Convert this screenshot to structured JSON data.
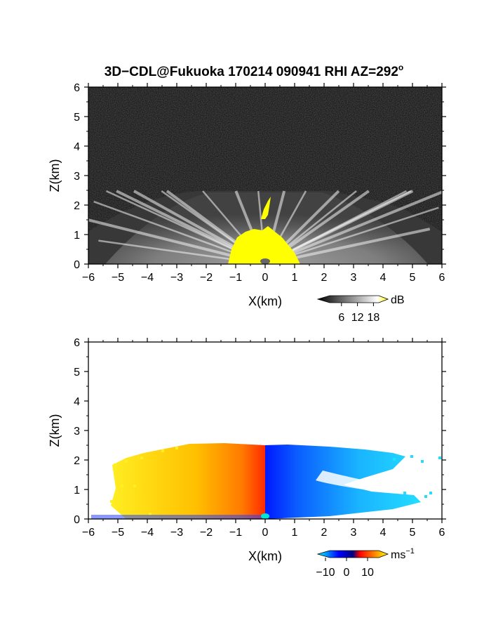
{
  "title": "3D−CDL@Fukuoka 170214 090941 RHI AZ=292",
  "title_superscript": "o",
  "chart_data": [
    {
      "type": "heatmap",
      "panel": "top",
      "variable": "backscatter",
      "xlabel": "X(km)",
      "ylabel": "Z(km)",
      "xlim": [
        -6,
        6
      ],
      "ylim": [
        0,
        6
      ],
      "xticks": [
        -6,
        -5,
        -4,
        -3,
        -2,
        -1,
        0,
        1,
        2,
        3,
        4,
        5,
        6
      ],
      "yticks": [
        0,
        1,
        2,
        3,
        4,
        5,
        6
      ],
      "xtick_labels": [
        "−6",
        "−5",
        "−4",
        "−3",
        "−2",
        "−1",
        "0",
        "1",
        "2",
        "3",
        "4",
        "5",
        "6"
      ],
      "ytick_labels": [
        "0",
        "1",
        "2",
        "3",
        "4",
        "5",
        "6"
      ],
      "colorbar": {
        "unit": "dB",
        "tick_labels": [
          "6",
          "12",
          "18"
        ],
        "range": [
          0,
          20
        ],
        "colors": [
          "#000000",
          "#ffffff",
          "#ffff00"
        ]
      },
      "echo_top_km": 2.4,
      "saturated_region": {
        "color": "#ffff00",
        "x_range": [
          -1.1,
          1.2
        ],
        "z_range": [
          0,
          2.4
        ]
      }
    },
    {
      "type": "heatmap",
      "panel": "bottom",
      "variable": "doppler_velocity",
      "xlabel": "X(km)",
      "ylabel": "Z(km)",
      "xlim": [
        -6,
        6
      ],
      "ylim": [
        0,
        6
      ],
      "xticks": [
        -6,
        -5,
        -4,
        -3,
        -2,
        -1,
        0,
        1,
        2,
        3,
        4,
        5,
        6
      ],
      "yticks": [
        0,
        1,
        2,
        3,
        4,
        5,
        6
      ],
      "xtick_labels": [
        "−6",
        "−5",
        "−4",
        "−3",
        "−2",
        "−1",
        "0",
        "1",
        "2",
        "3",
        "4",
        "5",
        "6"
      ],
      "ytick_labels": [
        "0",
        "1",
        "2",
        "3",
        "4",
        "5",
        "6"
      ],
      "colorbar": {
        "unit": "ms",
        "unit_superscript": "−1",
        "tick_labels": [
          "−10",
          "0",
          "10"
        ],
        "range": [
          -12,
          12
        ],
        "colors": [
          "#00ffff",
          "#0000ff",
          "#ff0000",
          "#ffff00"
        ]
      },
      "echo_top_km": 2.5,
      "negative_side_color": "#ffd000",
      "positive_side_color": "#00c8ff"
    }
  ]
}
